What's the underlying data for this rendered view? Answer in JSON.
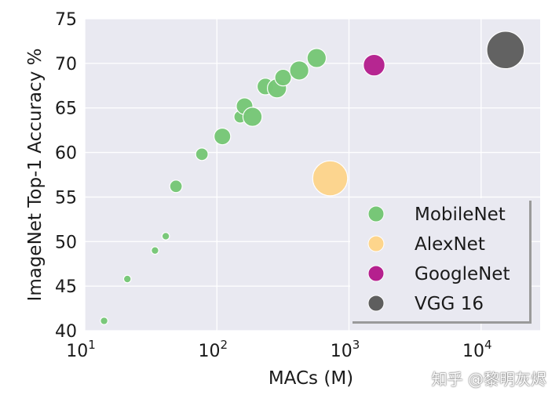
{
  "chart_data": {
    "type": "scatter",
    "xlabel": "MACs (M)",
    "ylabel": "ImageNet Top-1 Accuracy %",
    "xscale": "log",
    "xlim": [
      10,
      28000
    ],
    "ylim": [
      40,
      75
    ],
    "yticks": [
      "40",
      "45",
      "50",
      "55",
      "60",
      "65",
      "70",
      "75"
    ],
    "xticks": [
      {
        "value": 10,
        "mantissa": "10",
        "exp": "1"
      },
      {
        "value": 100,
        "mantissa": "10",
        "exp": "2"
      },
      {
        "value": 1000,
        "mantissa": "10",
        "exp": "3"
      },
      {
        "value": 10000,
        "mantissa": "10",
        "exp": "4"
      }
    ],
    "grid": true,
    "background": "#e9e9f1",
    "legend_position": "lower-right",
    "series": [
      {
        "name": "MobileNet",
        "color": "#77c777",
        "points": [
          {
            "x": 14,
            "y": 41.1,
            "size": 0.9
          },
          {
            "x": 21,
            "y": 45.8,
            "size": 0.9
          },
          {
            "x": 34,
            "y": 49.0,
            "size": 0.9
          },
          {
            "x": 41,
            "y": 50.6,
            "size": 0.9
          },
          {
            "x": 49,
            "y": 56.2,
            "size": 1.5
          },
          {
            "x": 77,
            "y": 59.8,
            "size": 1.5
          },
          {
            "x": 110,
            "y": 61.8,
            "size": 2.0
          },
          {
            "x": 150,
            "y": 64.0,
            "size": 1.5
          },
          {
            "x": 162,
            "y": 65.2,
            "size": 2.0
          },
          {
            "x": 186,
            "y": 64.0,
            "size": 2.3
          },
          {
            "x": 233,
            "y": 67.4,
            "size": 2.0
          },
          {
            "x": 285,
            "y": 67.2,
            "size": 2.3
          },
          {
            "x": 317,
            "y": 68.4,
            "size": 2.0
          },
          {
            "x": 420,
            "y": 69.2,
            "size": 2.3
          },
          {
            "x": 569,
            "y": 70.6,
            "size": 2.3
          }
        ]
      },
      {
        "name": "AlexNet",
        "color": "#fdd58c",
        "points": [
          {
            "x": 720,
            "y": 57.1,
            "size": 4.2
          }
        ]
      },
      {
        "name": "GoogleNet",
        "color": "#b5208e",
        "points": [
          {
            "x": 1550,
            "y": 69.8,
            "size": 2.6
          }
        ]
      },
      {
        "name": "VGG 16",
        "color": "#5e5e5e",
        "points": [
          {
            "x": 15300,
            "y": 71.5,
            "size": 4.5
          }
        ]
      }
    ]
  },
  "watermark": "知乎 @黎明灰烬"
}
